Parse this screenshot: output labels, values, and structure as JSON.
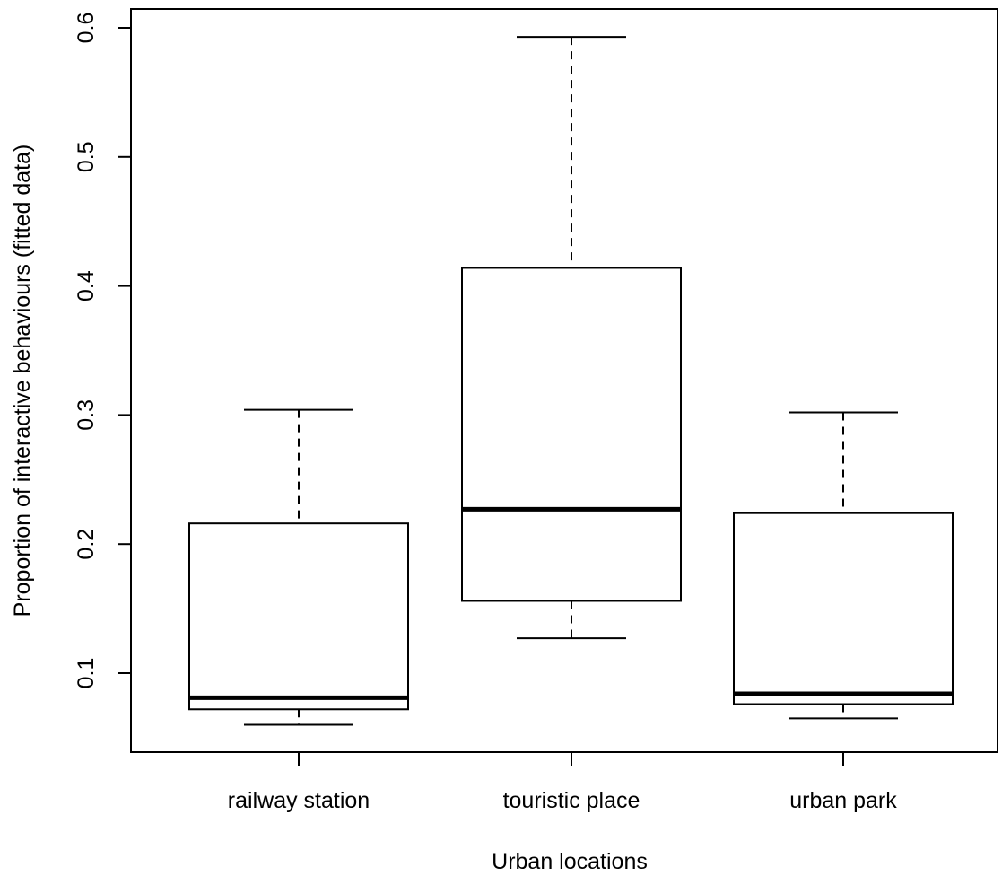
{
  "chart_data": {
    "type": "box",
    "title": "",
    "xlabel": "Urban locations",
    "ylabel": "Proportion of interactive behaviours (fitted data)",
    "ylim": [
      0.04,
      0.61
    ],
    "yticks": [
      0.1,
      0.2,
      0.3,
      0.4,
      0.5,
      0.6
    ],
    "ytick_labels": [
      "0.1",
      "0.2",
      "0.3",
      "0.4",
      "0.5",
      "0.6"
    ],
    "grid": false,
    "categories": [
      "railway station",
      "touristic place",
      "urban park"
    ],
    "boxes": [
      {
        "category": "railway station",
        "whisker_low": 0.06,
        "q1": 0.072,
        "median": 0.081,
        "q3": 0.216,
        "whisker_high": 0.304
      },
      {
        "category": "touristic place",
        "whisker_low": 0.127,
        "q1": 0.156,
        "median": 0.227,
        "q3": 0.414,
        "whisker_high": 0.593
      },
      {
        "category": "urban park",
        "whisker_low": 0.065,
        "q1": 0.076,
        "median": 0.084,
        "q3": 0.224,
        "whisker_high": 0.302
      }
    ]
  }
}
